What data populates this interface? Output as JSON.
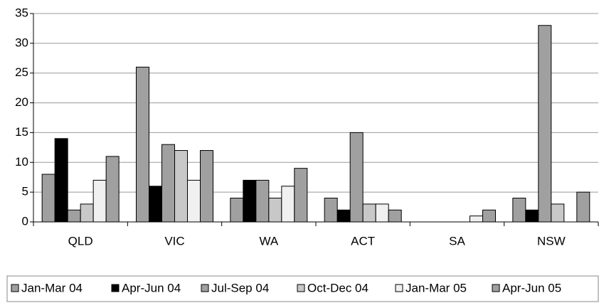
{
  "chart_data": {
    "type": "bar",
    "categories": [
      "QLD",
      "VIC",
      "WA",
      "ACT",
      "SA",
      "NSW"
    ],
    "series": [
      {
        "name": "Jan-Mar 04",
        "color": "#a0a0a0",
        "values": [
          8,
          26,
          4,
          4,
          0,
          4
        ]
      },
      {
        "name": "Apr-Jun 04",
        "color": "#000000",
        "values": [
          14,
          6,
          7,
          2,
          0,
          2
        ]
      },
      {
        "name": "Jul-Sep 04",
        "color": "#a0a0a0",
        "values": [
          2,
          13,
          7,
          15,
          0,
          33
        ]
      },
      {
        "name": "Oct-Dec 04",
        "color": "#c8c8c8",
        "values": [
          3,
          12,
          4,
          3,
          0,
          3
        ]
      },
      {
        "name": "Jan-Mar 05",
        "color": "#f0f0f0",
        "values": [
          7,
          7,
          6,
          3,
          1,
          0
        ]
      },
      {
        "name": "Apr-Jun 05",
        "color": "#a0a0a0",
        "values": [
          11,
          12,
          9,
          2,
          2,
          5
        ]
      }
    ],
    "ylim": [
      0,
      35
    ],
    "yticks": [
      0,
      5,
      10,
      15,
      20,
      25,
      30,
      35
    ],
    "grid": true,
    "legend": "bottom"
  }
}
